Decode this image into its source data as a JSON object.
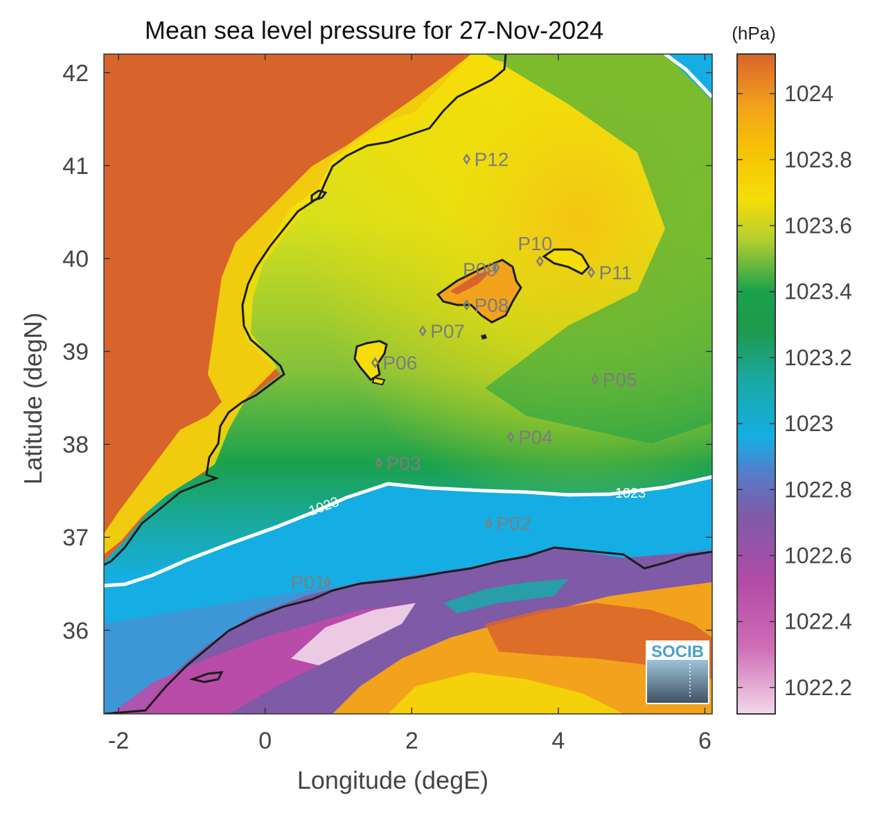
{
  "title": "Mean sea level pressure for 27-Nov-2024",
  "map": {
    "xlabel": "Longitude (degE)",
    "ylabel": "Latitude (degN)",
    "x_ticks": [
      "-2",
      "0",
      "2",
      "4",
      "6"
    ],
    "y_ticks": [
      "42",
      "41",
      "40",
      "39",
      "38",
      "37",
      "36"
    ],
    "xlim": [
      -2.2,
      6.1
    ],
    "ylim": [
      35.1,
      42.2
    ],
    "contour_label": "1023",
    "contour_labels": [
      "1023",
      "1023"
    ],
    "stations": [
      {
        "id": "P01",
        "lon": 0.85,
        "lat": 36.52
      },
      {
        "id": "P02",
        "lon": 3.05,
        "lat": 37.15
      },
      {
        "id": "P03",
        "lon": 1.55,
        "lat": 37.8
      },
      {
        "id": "P04",
        "lon": 3.35,
        "lat": 38.08
      },
      {
        "id": "P05",
        "lon": 4.5,
        "lat": 38.7
      },
      {
        "id": "P06",
        "lon": 1.5,
        "lat": 38.88
      },
      {
        "id": "P07",
        "lon": 2.15,
        "lat": 39.22
      },
      {
        "id": "P08",
        "lon": 2.75,
        "lat": 39.5
      },
      {
        "id": "P09",
        "lon": 3.15,
        "lat": 39.9
      },
      {
        "id": "P10",
        "lon": 3.75,
        "lat": 39.97
      },
      {
        "id": "P11",
        "lon": 4.45,
        "lat": 39.85
      },
      {
        "id": "P12",
        "lon": 2.75,
        "lat": 41.07
      }
    ]
  },
  "colorbar": {
    "unit": "(hPa)",
    "ticks": [
      "1024",
      "1023.8",
      "1023.6",
      "1023.4",
      "1023.2",
      "1023",
      "1022.8",
      "1022.6",
      "1022.4",
      "1022.2"
    ],
    "range": [
      1022.12,
      1024.12
    ]
  },
  "logo": {
    "text": "SOCIB"
  },
  "colors": {
    "land_high_pressure": "#d9642b",
    "orange": "#f2a21b",
    "yellow": "#f5dd08",
    "green": "#1aa14b",
    "teal": "#19aaa8",
    "blue": "#14aee4",
    "purple": "#7e5aa7",
    "magenta": "#c24aa8",
    "pink_light": "#f3d8ea",
    "coast": "#1c1c1c",
    "contour": "#ffffff",
    "station": "#7d7d7d"
  }
}
